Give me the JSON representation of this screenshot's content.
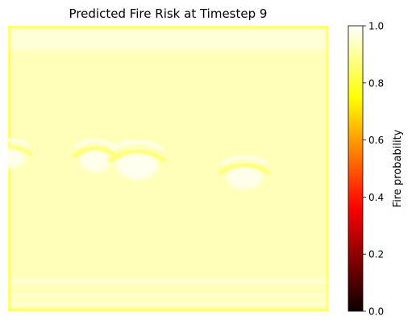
{
  "chart_data": {
    "type": "heatmap",
    "title": "Predicted Fire Risk at Timestep 9",
    "xlabel": "",
    "ylabel": "",
    "axes_visible": false,
    "colormap": "hot",
    "colorbar": {
      "label": "Fire probability",
      "range": [
        0.0,
        1.0
      ],
      "ticks": [
        0.0,
        0.2,
        0.4,
        0.6,
        0.8,
        1.0
      ],
      "tick_labels": [
        "0.0",
        "0.2",
        "0.4",
        "0.6",
        "0.8",
        "1.0"
      ]
    },
    "field": {
      "background_value": 0.93,
      "border_value": 0.82,
      "edge_band_value": 0.96,
      "features": [
        {
          "name": "blob-left-edge",
          "crest_value": 0.86,
          "trough_value": 0.98
        },
        {
          "name": "blob-1",
          "crest_value": 0.85,
          "trough_value": 0.98
        },
        {
          "name": "blob-2",
          "crest_value": 0.85,
          "trough_value": 0.985
        },
        {
          "name": "blob-3",
          "crest_value": 0.85,
          "trough_value": 0.98
        }
      ]
    }
  }
}
